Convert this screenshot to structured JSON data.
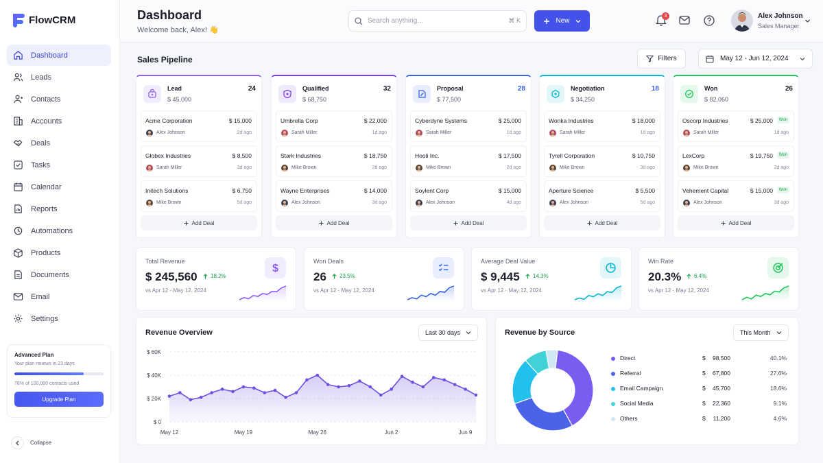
{
  "brand": {
    "name": "FlowCRM"
  },
  "sidebar": {
    "items": [
      {
        "label": "Dashboard",
        "icon": "home-icon"
      },
      {
        "label": "Leads",
        "icon": "leads-icon"
      },
      {
        "label": "Contacts",
        "icon": "contacts-icon"
      },
      {
        "label": "Accounts",
        "icon": "building-icon"
      },
      {
        "label": "Deals",
        "icon": "handshake-icon"
      },
      {
        "label": "Tasks",
        "icon": "checkbox-icon"
      },
      {
        "label": "Calendar",
        "icon": "calendar-icon"
      },
      {
        "label": "Reports",
        "icon": "report-icon"
      },
      {
        "label": "Automations",
        "icon": "automation-icon"
      },
      {
        "label": "Products",
        "icon": "box-icon"
      },
      {
        "label": "Documents",
        "icon": "document-icon"
      },
      {
        "label": "Email",
        "icon": "mail-icon"
      },
      {
        "label": "Settings",
        "icon": "gear-icon"
      }
    ],
    "active": "Dashboard",
    "plan": {
      "title": "Advanced Plan",
      "renewal": "Your plan renews in 23 days",
      "usage_fraction": 0.78,
      "usage": "78% of 100,000 contacts used",
      "button": "Upgrade Plan"
    },
    "collapse_label": "Collapse"
  },
  "header": {
    "title": "Dashboard",
    "welcome": "Welcome back, Alex! 👋",
    "search_placeholder": "Search anything...",
    "search_shortcut": "⌘ K",
    "new_label": "New",
    "notification_count": "3",
    "user": {
      "name": "Alex Johnson",
      "role": "Sales Manager"
    }
  },
  "pipeline": {
    "title": "Sales Pipeline",
    "filters_label": "Filters",
    "date_range": "May 12 - Jun 12, 2024",
    "add_deal_label": "Add Deal",
    "won_tag": "Won",
    "stages": [
      {
        "name": "Lead",
        "total": "$ 45,000",
        "count": "24",
        "color": "#8b5cf6",
        "bg": "#f1ebfe",
        "deals": [
          {
            "company": "Acme Corporation",
            "value": "$ 15,000",
            "owner": "Alex Johnson",
            "ago": "2d ago"
          },
          {
            "company": "Globex Industries",
            "value": "$ 8,500",
            "owner": "Sarah Miller",
            "ago": "3d ago"
          },
          {
            "company": "Initech Solutions",
            "value": "$ 6,750",
            "owner": "Mike Brown",
            "ago": "5d ago"
          }
        ]
      },
      {
        "name": "Qualified",
        "total": "$ 68,750",
        "count": "32",
        "color": "#7c3aed",
        "bg": "#efe9fd",
        "deals": [
          {
            "company": "Umbrella Corp",
            "value": "$ 22,000",
            "owner": "Sarah Miller",
            "ago": "1d ago"
          },
          {
            "company": "Stark Industries",
            "value": "$ 18,750",
            "owner": "Mike Brown",
            "ago": "2d ago"
          },
          {
            "company": "Wayne Enterprises",
            "value": "$ 14,000",
            "owner": "Alex Johnson",
            "ago": "3d ago"
          }
        ]
      },
      {
        "name": "Proposal",
        "total": "$ 77,500",
        "count": "28",
        "color": "#3b63e6",
        "bg": "#e8eefd",
        "deals": [
          {
            "company": "Cyberdyne Systems",
            "value": "$ 25,000",
            "owner": "Sarah Miller",
            "ago": "1d ago"
          },
          {
            "company": "Hooli Inc.",
            "value": "$ 17,500",
            "owner": "Mike Brown",
            "ago": "2d ago"
          },
          {
            "company": "Soylent Corp",
            "value": "$ 15,000",
            "owner": "Alex Johnson",
            "ago": "4d ago"
          }
        ]
      },
      {
        "name": "Negotiation",
        "total": "$ 34,250",
        "count": "18",
        "color": "#06b6d4",
        "bg": "#e3f7fb",
        "deals": [
          {
            "company": "Wonka Industries",
            "value": "$ 18,000",
            "owner": "Sarah Miller",
            "ago": "1d ago"
          },
          {
            "company": "Tyrell Corporation",
            "value": "$ 10,750",
            "owner": "Mike Brown",
            "ago": "3d ago"
          },
          {
            "company": "Aperture Science",
            "value": "$ 5,500",
            "owner": "Alex Johnson",
            "ago": "5d ago"
          }
        ]
      },
      {
        "name": "Won",
        "total": "$ 82,060",
        "count": "26",
        "color": "#22c55e",
        "bg": "#e5f8ec",
        "deals": [
          {
            "company": "Oscorp Industries",
            "value": "$ 25,000",
            "owner": "Sarah Miller",
            "ago": "1d ago"
          },
          {
            "company": "LexCorp",
            "value": "$ 19,750",
            "owner": "Mike Brown",
            "ago": "2d ago"
          },
          {
            "company": "Vehement Capital",
            "value": "$ 15,000",
            "owner": "Alex Johnson",
            "ago": "3d ago"
          }
        ]
      }
    ]
  },
  "kpis": [
    {
      "label": "Total Revenue",
      "value": "$ 245,560",
      "delta": "18.2%",
      "period": "vs Apr 12 - May 12, 2024",
      "icon": "dollar-icon",
      "color": "#8b5cf6",
      "bg": "#f1ebfe",
      "trend": [
        3,
        4,
        3.5,
        5,
        4.6,
        6,
        5.5,
        7,
        6.8,
        8.6,
        9.5
      ]
    },
    {
      "label": "Won Deals",
      "value": "26",
      "delta": "23.5%",
      "period": "vs Apr 12 - May 12, 2024",
      "icon": "checklist-icon",
      "color": "#3b63e6",
      "bg": "#e8eefd",
      "trend": [
        3,
        4,
        3.4,
        5.2,
        4.5,
        6,
        5.2,
        7,
        6.6,
        8.8,
        9.6
      ]
    },
    {
      "label": "Average Deal Value",
      "value": "$ 9,445",
      "delta": "14.3%",
      "period": "vs Apr 12 - May 12, 2024",
      "icon": "pie-icon",
      "color": "#06b6d4",
      "bg": "#e3f7fb",
      "trend": [
        3,
        3.8,
        3.2,
        5,
        4.4,
        5.8,
        5,
        6.8,
        6.4,
        8.6,
        9.4
      ]
    },
    {
      "label": "Win Rate",
      "value": "20.3%",
      "delta": "6.4%",
      "period": "vs Apr 12 - May 12, 2024",
      "icon": "target-icon",
      "color": "#22c55e",
      "bg": "#e5f8ec",
      "trend": [
        3,
        4.2,
        3.4,
        5.2,
        4.6,
        6,
        5.4,
        7.2,
        6.8,
        8.8,
        9.6
      ]
    }
  ],
  "revenue_overview": {
    "title": "Revenue Overview",
    "range": "Last 30 days",
    "chart_data": {
      "type": "area",
      "x": [
        "May 12",
        "May 13",
        "May 14",
        "May 15",
        "May 16",
        "May 17",
        "May 18",
        "May 19",
        "May 20",
        "May 21",
        "May 22",
        "May 23",
        "May 24",
        "May 25",
        "May 26",
        "May 27",
        "May 28",
        "May 29",
        "May 30",
        "May 31",
        "Jun 1",
        "Jun 2",
        "Jun 3",
        "Jun 4",
        "Jun 5",
        "Jun 6",
        "Jun 7",
        "Jun 8",
        "Jun 9",
        "Jun 10"
      ],
      "y": [
        22000,
        25000,
        19000,
        21000,
        25000,
        28000,
        26000,
        30000,
        29000,
        25000,
        27000,
        21000,
        25000,
        36000,
        40000,
        32000,
        30000,
        31000,
        35000,
        30000,
        23000,
        28000,
        39000,
        34000,
        30000,
        38000,
        36000,
        32000,
        28000,
        23000
      ],
      "ylim": [
        0,
        60000
      ],
      "yticks": [
        "$ 0",
        "$ 20K",
        "$ 40K",
        "$ 60K"
      ],
      "xticks": [
        "May 12",
        "May 19",
        "May 26",
        "Jun 2",
        "Jun 9"
      ],
      "color": "#6d4fe0",
      "grid": true
    }
  },
  "revenue_by_source": {
    "title": "Revenue by Source",
    "range": "This Month",
    "chart_data": {
      "type": "pie",
      "labels": [
        "Direct",
        "Referral",
        "Email Campaign",
        "Social Media",
        "Others"
      ],
      "amounts": [
        "98,500",
        "67,800",
        "45,700",
        "22,360",
        "11,200"
      ],
      "currency": "$",
      "values": [
        40.1,
        27.6,
        18.6,
        9.1,
        4.6
      ],
      "percents": [
        "40.1%",
        "27.6%",
        "18.6%",
        "9.1%",
        "4.6%"
      ],
      "colors": [
        "#7b5cf0",
        "#4a63e8",
        "#22c0ec",
        "#43d1d8",
        "#cfe6f5"
      ]
    }
  }
}
